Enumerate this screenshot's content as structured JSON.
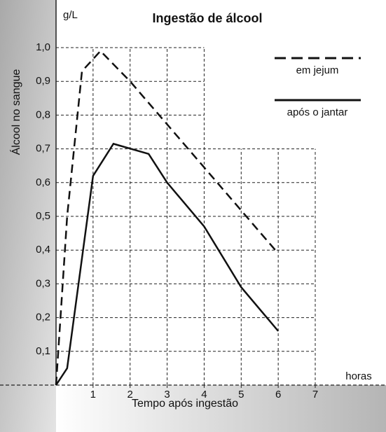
{
  "chart_data": {
    "type": "line",
    "title": "Ingestão de álcool",
    "y_unit": "g/L",
    "y_label": "Álcool no sangue",
    "x_unit": "horas",
    "x_label": "Tempo após ingestão",
    "xlim": [
      0,
      7
    ],
    "xticks": [
      1,
      2,
      3,
      4,
      5,
      6,
      7
    ],
    "ylim": [
      0,
      1
    ],
    "yticks": [
      {
        "value": 0.1,
        "label": "0,1"
      },
      {
        "value": 0.2,
        "label": "0,2"
      },
      {
        "value": 0.3,
        "label": "0,3"
      },
      {
        "value": 0.4,
        "label": "0,4"
      },
      {
        "value": 0.5,
        "label": "0,5"
      },
      {
        "value": 0.6,
        "label": "0,6"
      },
      {
        "value": 0.7,
        "label": "0,7"
      },
      {
        "value": 0.8,
        "label": "0,8"
      },
      {
        "value": 0.9,
        "label": "0,9"
      },
      {
        "value": 1.0,
        "label": "1,0"
      }
    ],
    "grid": true,
    "legend": "upper right",
    "series": [
      {
        "name": "em jejum",
        "color": "#111111",
        "style": "dashed",
        "x": [
          0,
          0.3,
          0.7,
          1.2,
          2,
          6
        ],
        "values": [
          0,
          0.5,
          0.93,
          0.99,
          0.9,
          0.39
        ]
      },
      {
        "name": "após o jantar",
        "color": "#111111",
        "style": "solid",
        "x": [
          0,
          0.3,
          1,
          1.55,
          2.5,
          3,
          4,
          5,
          6
        ],
        "values": [
          0,
          0.05,
          0.62,
          0.715,
          0.685,
          0.6,
          0.47,
          0.29,
          0.16
        ]
      }
    ]
  }
}
